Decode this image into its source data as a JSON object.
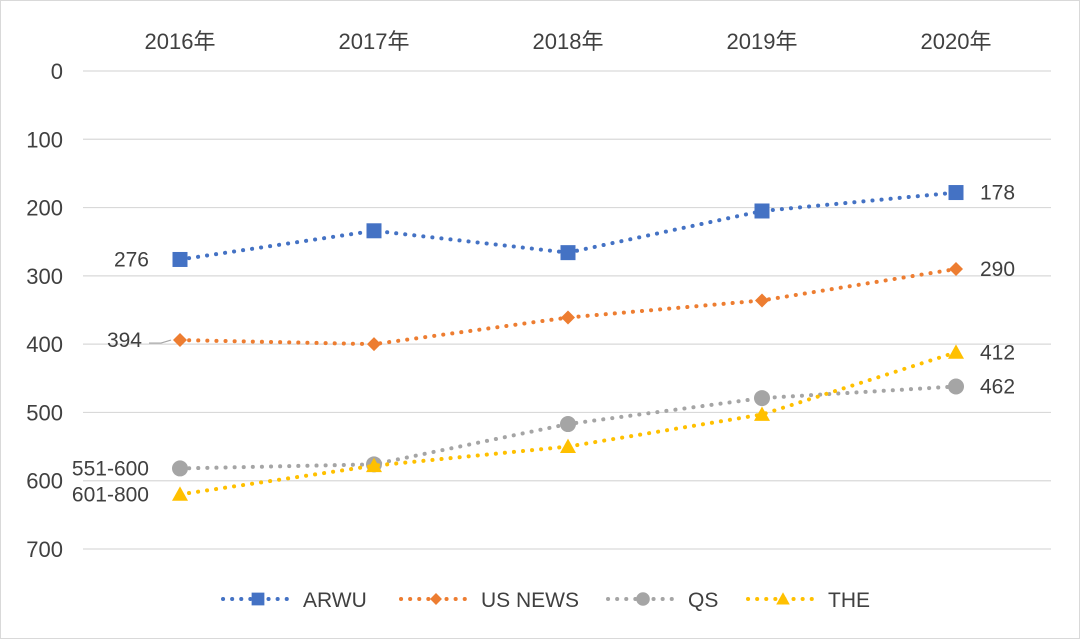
{
  "chart_data": {
    "type": "line",
    "categories": [
      "2016年",
      "2017年",
      "2018年",
      "2019年",
      "2020年"
    ],
    "y_axis": {
      "reversed": true,
      "ylim": [
        0,
        700
      ],
      "ticks": [
        0,
        100,
        200,
        300,
        400,
        500,
        600,
        700
      ]
    },
    "x_axis_position": "top",
    "grid": true,
    "legend": {
      "position": "bottom"
    },
    "series": [
      {
        "name": "ARWU",
        "color": "#4472C4",
        "marker": "square",
        "values": [
          276,
          234,
          266,
          205,
          178
        ]
      },
      {
        "name": "US NEWS",
        "color": "#ED7D31",
        "marker": "diamond",
        "values": [
          394,
          400,
          361,
          336,
          290
        ]
      },
      {
        "name": "QS",
        "color": "#A5A5A5",
        "marker": "circle",
        "values": [
          582,
          576,
          517,
          479,
          462
        ]
      },
      {
        "name": "THE",
        "color": "#FFC000",
        "marker": "triangle",
        "values": [
          620,
          578,
          550,
          503,
          412
        ]
      }
    ],
    "annotations": [
      {
        "series": 0,
        "point": 0,
        "text": "276",
        "side": "left"
      },
      {
        "series": 0,
        "point": 4,
        "text": "178",
        "side": "right"
      },
      {
        "series": 1,
        "point": 0,
        "text": "394",
        "side": "left",
        "leader": true
      },
      {
        "series": 1,
        "point": 4,
        "text": "290",
        "side": "right"
      },
      {
        "series": 2,
        "point": 0,
        "text": "551-600",
        "side": "left"
      },
      {
        "series": 2,
        "point": 4,
        "text": "462",
        "side": "right"
      },
      {
        "series": 3,
        "point": 0,
        "text": "601-800",
        "side": "left"
      },
      {
        "series": 3,
        "point": 4,
        "text": "412",
        "side": "right"
      }
    ]
  }
}
